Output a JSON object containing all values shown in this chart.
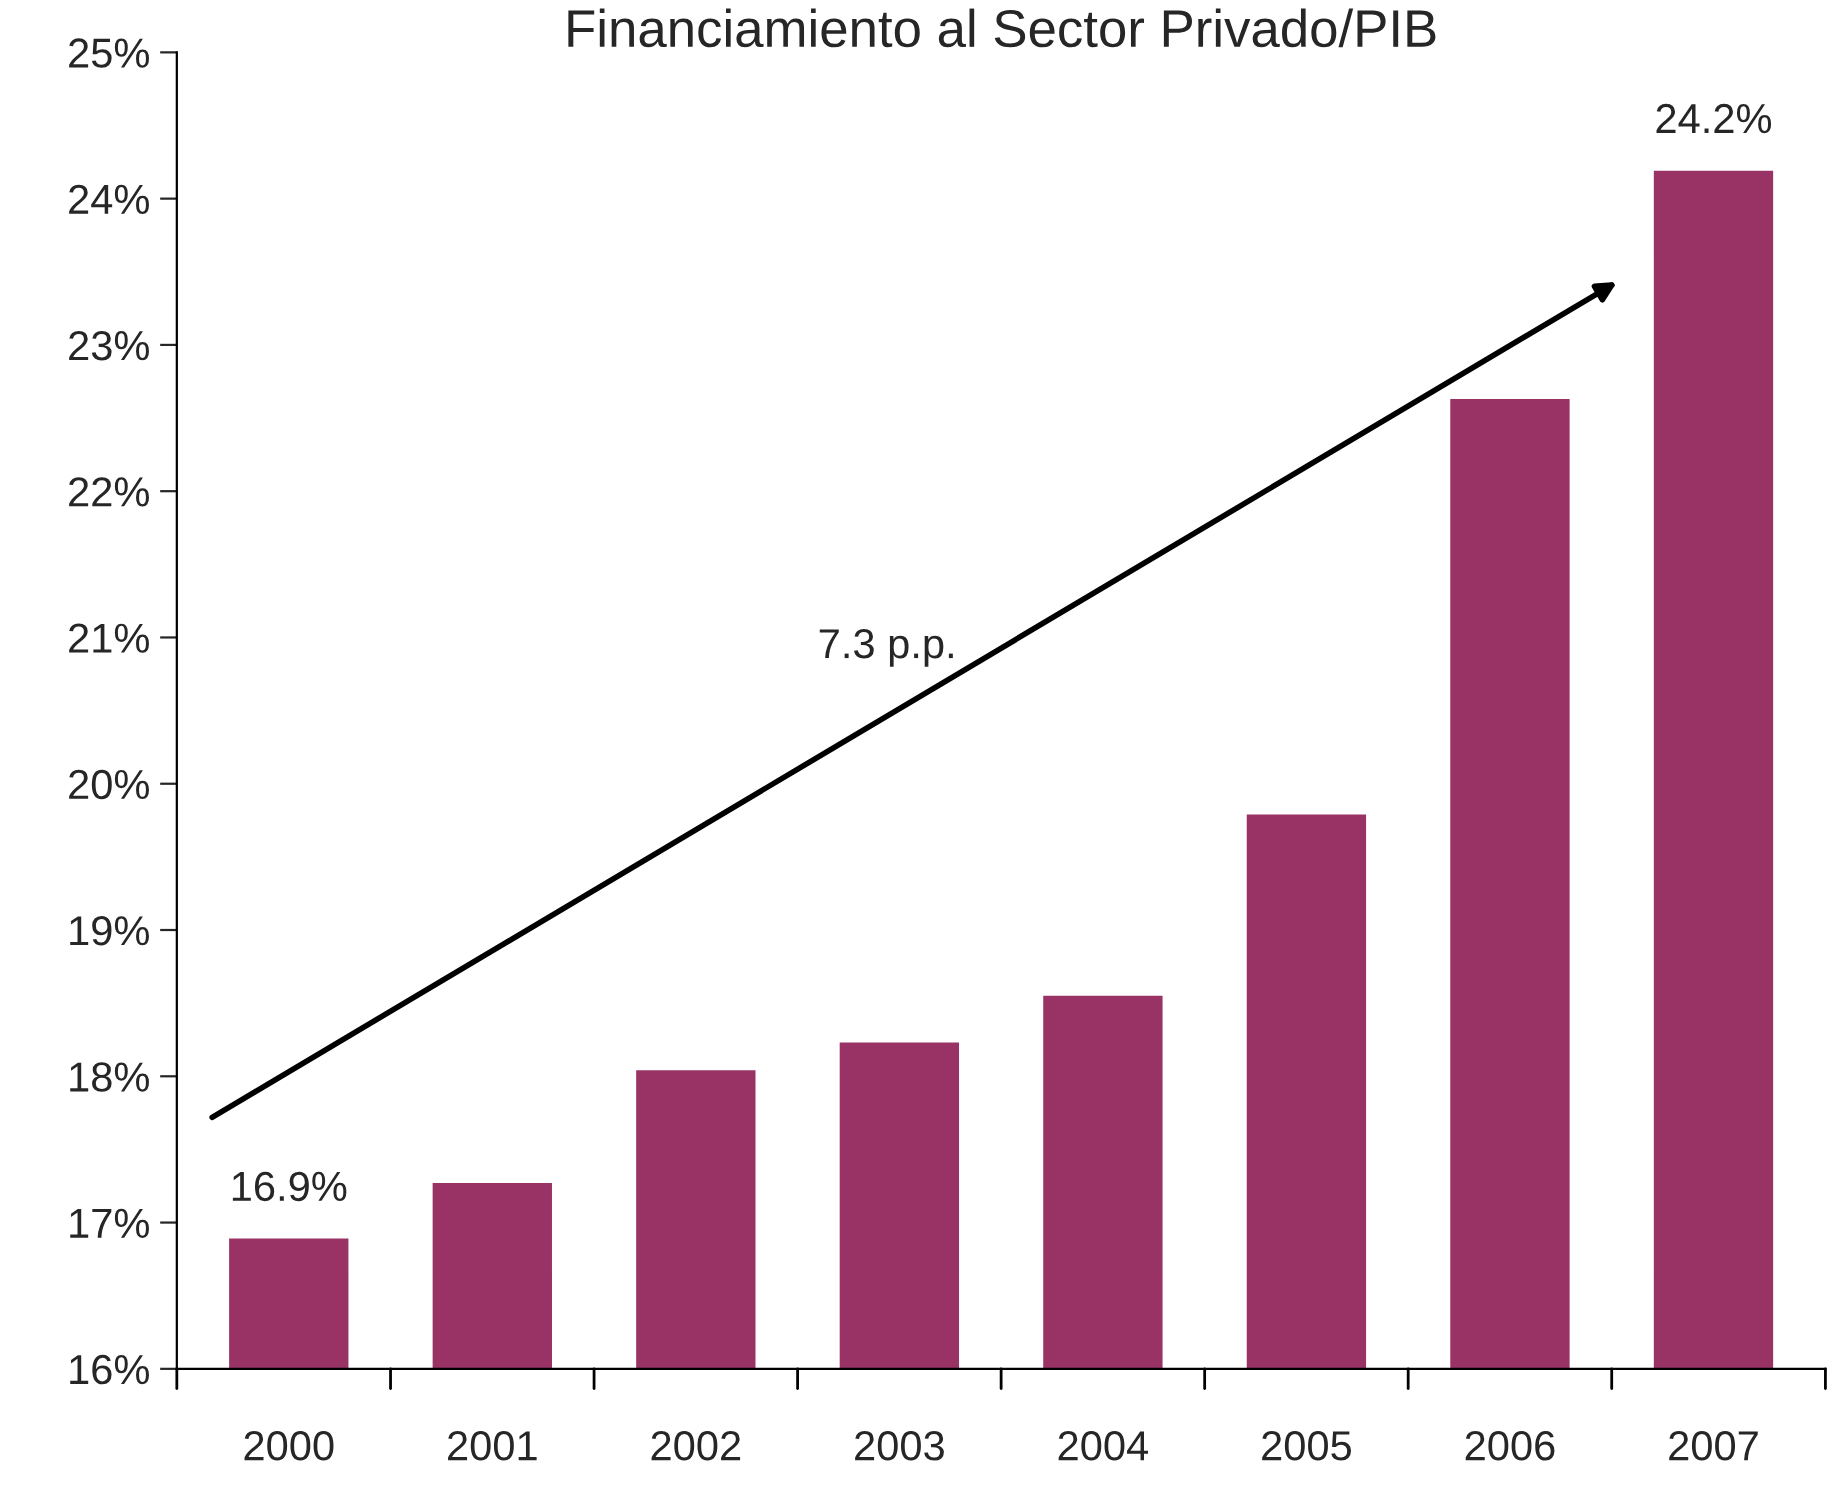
{
  "chart_data": {
    "type": "bar",
    "title": "Financiamiento al Sector Privado/PIB",
    "categories": [
      "2000",
      "2001",
      "2002",
      "2003",
      "2004",
      "2005",
      "2006",
      "2007"
    ],
    "values": [
      16.9,
      17.28,
      18.05,
      18.24,
      18.56,
      19.8,
      22.64,
      24.2
    ],
    "value_labels": [
      "16.9%",
      null,
      null,
      null,
      null,
      null,
      null,
      "24.2%"
    ],
    "color": "#993366",
    "ylim": [
      16,
      25
    ],
    "yticks": [
      {
        "value": 16,
        "label": "16%"
      },
      {
        "value": 17,
        "label": "17%"
      },
      {
        "value": 18,
        "label": "18%"
      },
      {
        "value": 19,
        "label": "19%"
      },
      {
        "value": 20,
        "label": "20%"
      },
      {
        "value": 21,
        "label": "21%"
      },
      {
        "value": 22,
        "label": "22%"
      },
      {
        "value": 23,
        "label": "23%"
      },
      {
        "value": 24,
        "label": "24%"
      },
      {
        "value": 25,
        "label": "25%"
      }
    ],
    "annotations": [
      "7.3 p.p."
    ],
    "grid": false
  }
}
